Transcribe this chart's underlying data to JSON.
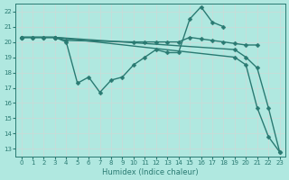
{
  "xlabel": "Humidex (Indice chaleur)",
  "bg_color": "#b0e8e0",
  "grid_color": "#c8dcd8",
  "line_color": "#2a7a72",
  "xlim": [
    -0.5,
    23.5
  ],
  "ylim": [
    12.5,
    22.5
  ],
  "xticks": [
    0,
    1,
    2,
    3,
    4,
    5,
    6,
    7,
    8,
    9,
    10,
    11,
    12,
    13,
    14,
    15,
    16,
    17,
    18,
    19,
    20,
    21,
    22,
    23
  ],
  "yticks": [
    13,
    14,
    15,
    16,
    17,
    18,
    19,
    20,
    21,
    22
  ],
  "series": [
    {
      "x": [
        0,
        1,
        2,
        3,
        4,
        10,
        11,
        12,
        13,
        14,
        15,
        16,
        17,
        18,
        19,
        20,
        21
      ],
      "y": [
        20.3,
        20.3,
        20.3,
        20.3,
        20.1,
        20.0,
        20.0,
        20.0,
        20.0,
        20.0,
        20.3,
        20.2,
        20.1,
        20.0,
        19.9,
        19.8,
        19.8
      ]
    },
    {
      "x": [
        0,
        1,
        2,
        3,
        4,
        5,
        6,
        7,
        8,
        9,
        10,
        11,
        12,
        13,
        14,
        15,
        16,
        17,
        18
      ],
      "y": [
        20.3,
        20.3,
        20.3,
        20.3,
        20.0,
        17.3,
        17.7,
        16.7,
        17.5,
        17.7,
        18.5,
        19.0,
        19.5,
        19.3,
        19.3,
        21.5,
        22.3,
        21.3,
        21.0
      ]
    },
    {
      "x": [
        0,
        3,
        19,
        20,
        21,
        22,
        23
      ],
      "y": [
        20.3,
        20.3,
        19.0,
        18.5,
        15.7,
        13.8,
        12.8
      ]
    },
    {
      "x": [
        0,
        3,
        19,
        20,
        21,
        22,
        23
      ],
      "y": [
        20.3,
        20.3,
        19.5,
        19.0,
        18.3,
        15.7,
        12.8
      ]
    }
  ],
  "markersize": 2.5,
  "linewidth": 1.0
}
